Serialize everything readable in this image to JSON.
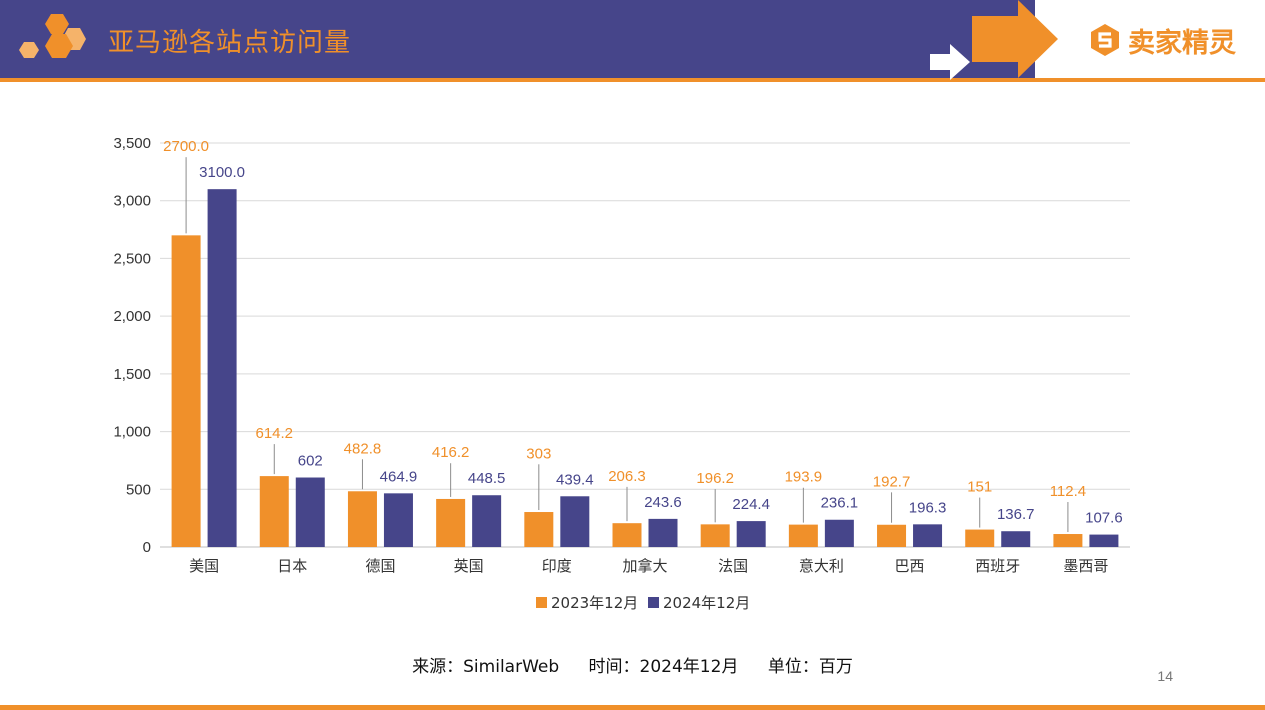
{
  "header": {
    "title": "亚马逊各站点访问量",
    "brand_name": "卖家精灵",
    "colors": {
      "band": "#46458a",
      "accent": "#f0902a"
    },
    "icons": [
      "hexagon-cluster-icon",
      "arrow-right-icon",
      "brand-logo-icon"
    ]
  },
  "chart_data": {
    "type": "bar",
    "categories": [
      "美国",
      "日本",
      "德国",
      "英国",
      "印度",
      "加拿大",
      "法国",
      "意大利",
      "巴西",
      "西班牙",
      "墨西哥"
    ],
    "series": [
      {
        "name": "2023年12月",
        "color": "#f0902a",
        "values": [
          2700.0,
          614.2,
          482.8,
          416.2,
          303,
          206.3,
          196.2,
          193.9,
          192.7,
          151,
          112.4
        ],
        "labels": [
          "2700.0",
          "614.2",
          "482.8",
          "416.2",
          "303",
          "206.3",
          "196.2",
          "193.9",
          "192.7",
          "151",
          "112.4"
        ]
      },
      {
        "name": "2024年12月",
        "color": "#46458a",
        "values": [
          3100.0,
          602,
          464.9,
          448.5,
          439.4,
          243.6,
          224.4,
          236.1,
          196.3,
          136.7,
          107.6
        ],
        "labels": [
          "3100.0",
          "602",
          "464.9",
          "448.5",
          "439.4",
          "243.6",
          "224.4",
          "236.1",
          "196.3",
          "136.7",
          "107.6"
        ]
      }
    ],
    "yticks": [
      "0",
      "500",
      "1,000",
      "1,500",
      "2,000",
      "2,500",
      "3,000",
      "3,500"
    ],
    "ylim": [
      0,
      3500
    ],
    "grid": true,
    "legend_position": "bottom"
  },
  "footer": {
    "source": "来源：SimilarWeb",
    "time": "时间：2024年12月",
    "unit": "单位：百万",
    "page": "14"
  }
}
